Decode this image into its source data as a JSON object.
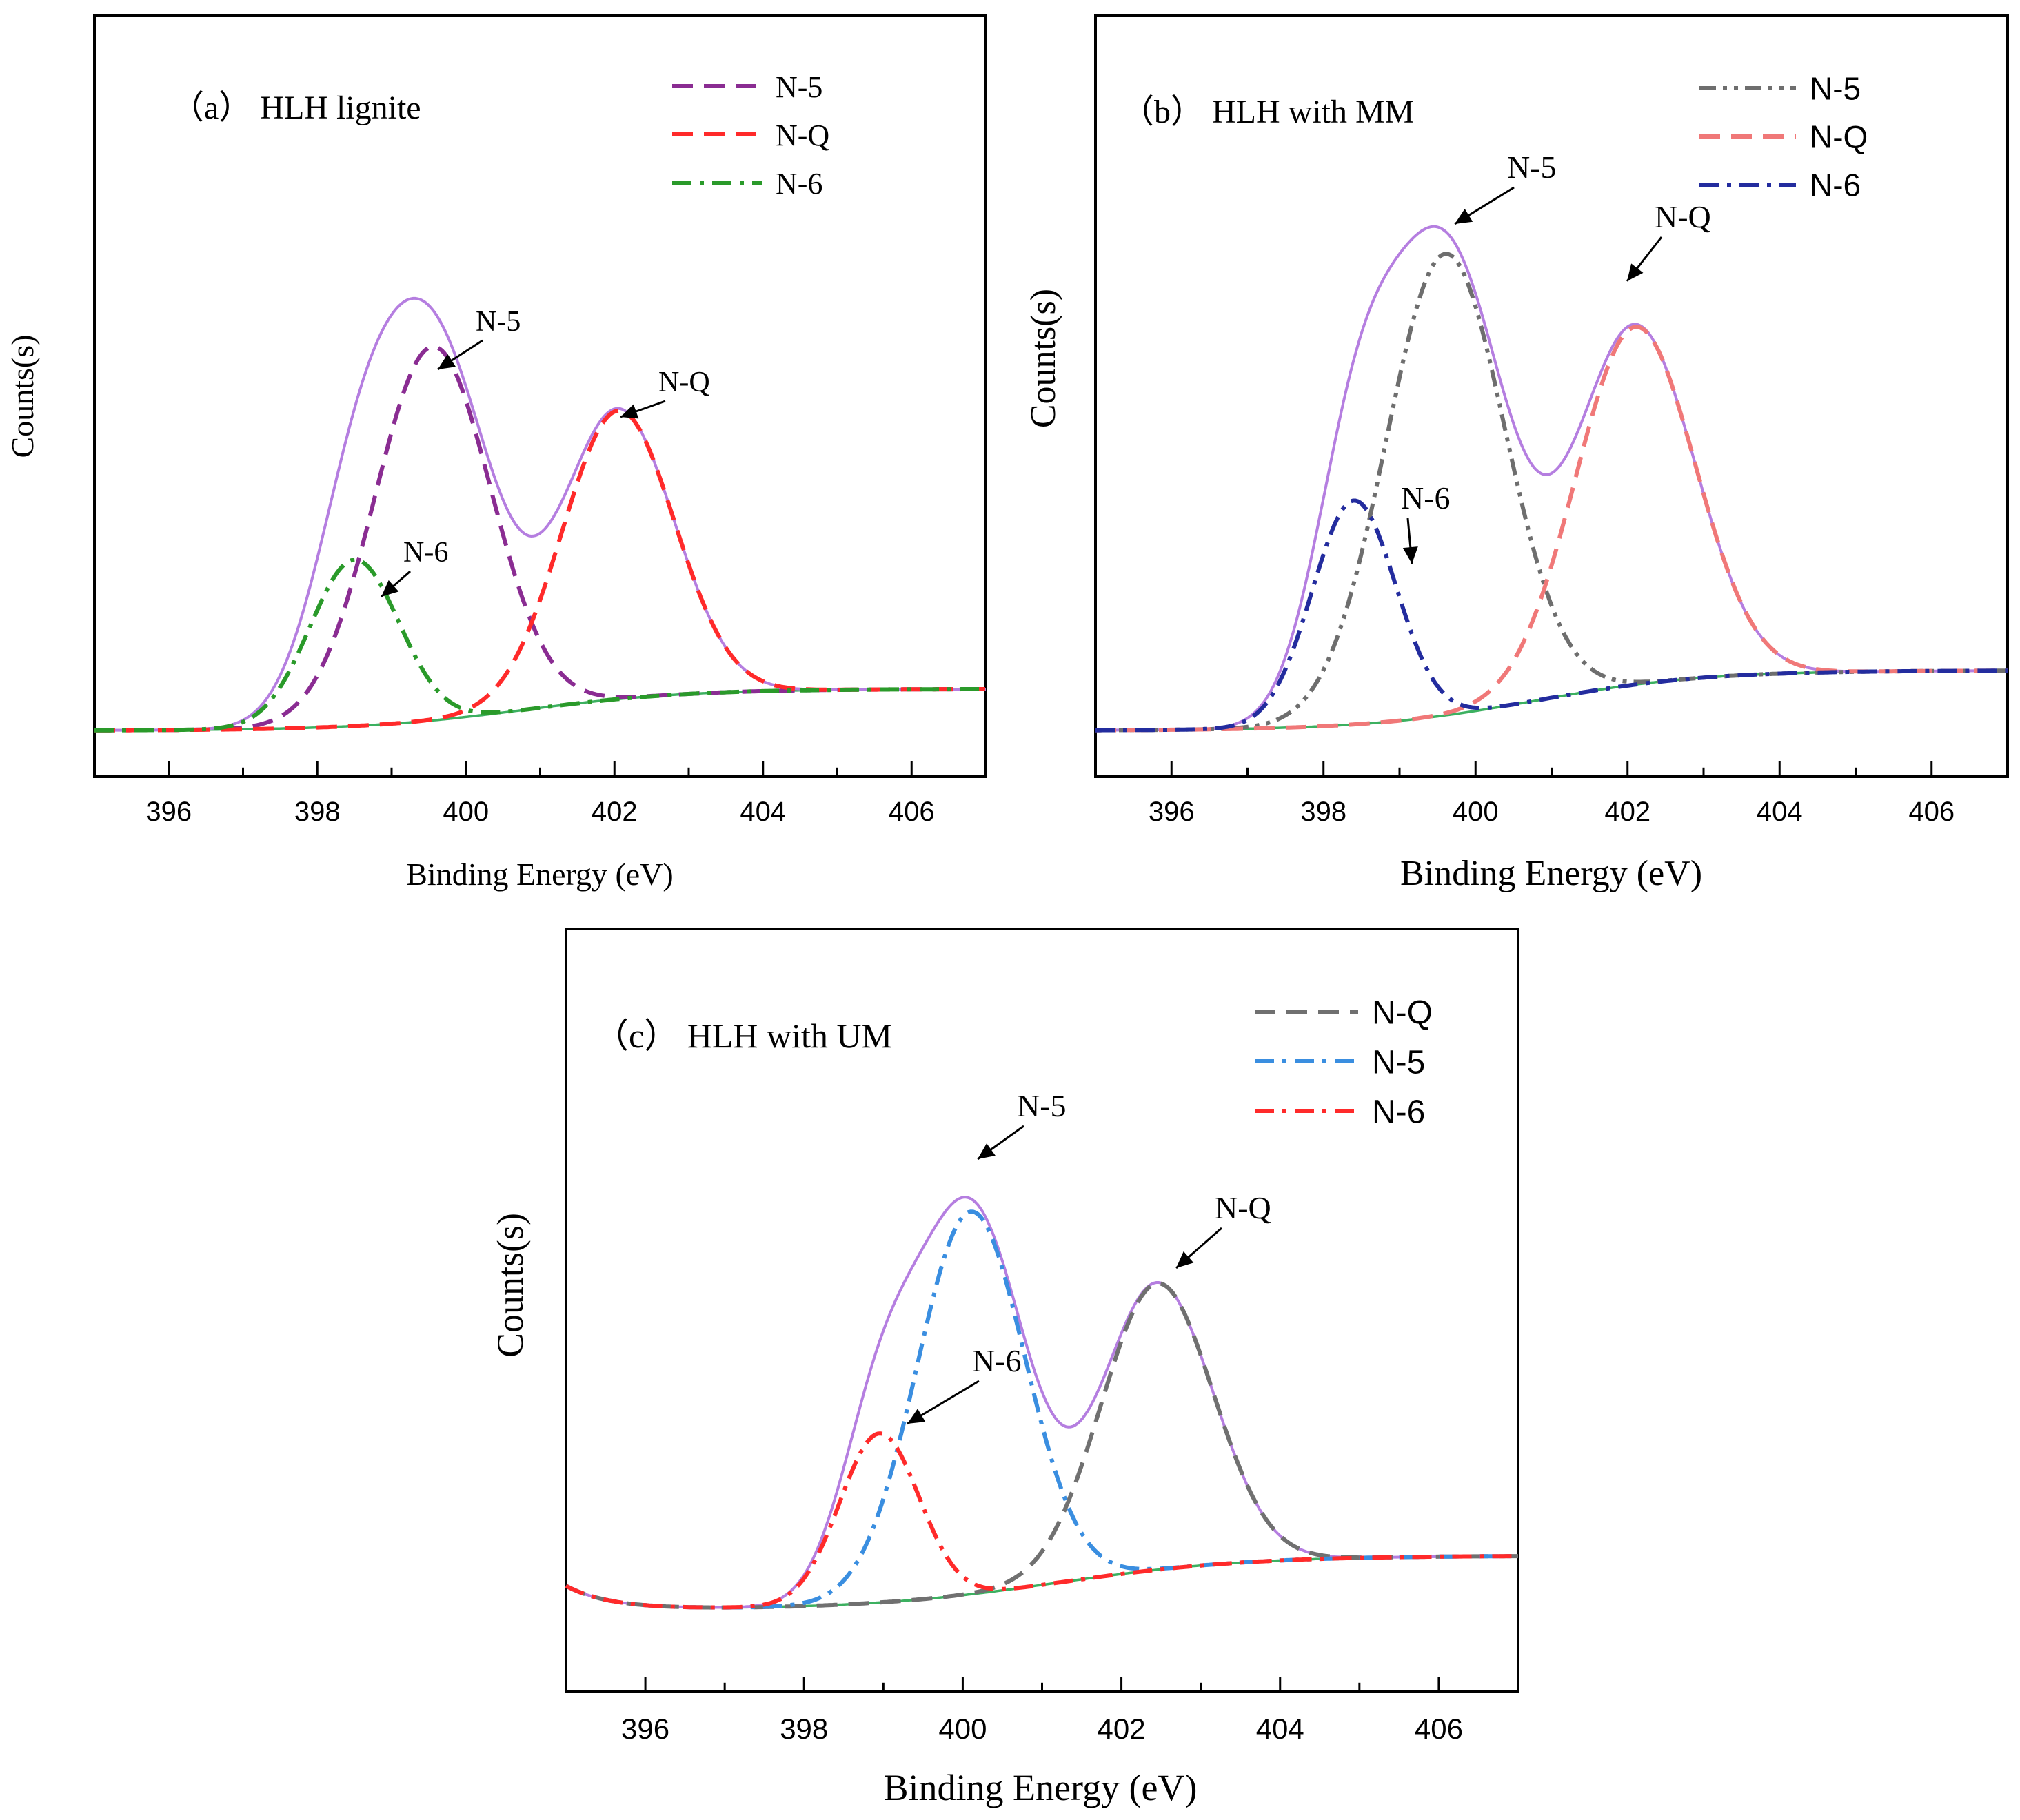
{
  "chart_data": [
    {
      "id": "a",
      "type": "line",
      "title": "（a）  HLH lignite",
      "xlabel": "Binding Energy (eV)",
      "ylabel": "Counts(s)",
      "xlim": [
        395,
        407
      ],
      "ylim": [
        -0.2,
        3.1
      ],
      "xticks": [
        396,
        398,
        400,
        402,
        404,
        406
      ],
      "legend_position": "top-right",
      "background": {
        "start": 0.0,
        "end": 0.18,
        "center": 400.8,
        "width": 1.1
      },
      "series": [
        {
          "name": "N-5",
          "role": "component",
          "color": "#8a2c92",
          "dash": "dashed",
          "center": 399.55,
          "sigma": 0.78,
          "amplitude": 1.62
        },
        {
          "name": "N-Q",
          "role": "component",
          "color": "#ff2a2a",
          "dash": "dashed",
          "center": 402.05,
          "sigma": 0.75,
          "amplitude": 1.25
        },
        {
          "name": "N-6",
          "role": "component",
          "color": "#2a9a2a",
          "dash": "dashdot",
          "center": 398.5,
          "sigma": 0.6,
          "amplitude": 0.72
        },
        {
          "name": "Envelope",
          "role": "envelope",
          "color": "#b57ee0",
          "dash": "solid"
        },
        {
          "name": "Background",
          "role": "background",
          "color": "#3cb060",
          "dash": "solid"
        }
      ],
      "annotations": [
        {
          "text": "N-5",
          "x": 399.55
        },
        {
          "text": "N-Q",
          "x": 402.05
        },
        {
          "text": "N-6",
          "x": 398.6
        }
      ]
    },
    {
      "id": "b",
      "type": "line",
      "title": "（b）  HLH with MM",
      "xlabel": "Binding Energy (eV)",
      "ylabel": "Counts(s)",
      "xlim": [
        395,
        407
      ],
      "ylim": [
        -0.2,
        3.1
      ],
      "xticks": [
        396,
        398,
        400,
        402,
        404,
        406
      ],
      "legend_position": "top-right",
      "background": {
        "start": 0.0,
        "end": 0.26,
        "center": 400.8,
        "width": 1.1
      },
      "series": [
        {
          "name": "N-5",
          "role": "component",
          "color": "#6e6e6e",
          "dash": "dashdotdot",
          "center": 399.6,
          "sigma": 0.78,
          "amplitude": 2.0
        },
        {
          "name": "N-Q",
          "role": "component",
          "color": "#f07878",
          "dash": "dashed",
          "center": 402.1,
          "sigma": 0.78,
          "amplitude": 1.55
        },
        {
          "name": "N-6",
          "role": "component",
          "color": "#232c9e",
          "dash": "dashdot",
          "center": 398.4,
          "sigma": 0.55,
          "amplitude": 0.97
        },
        {
          "name": "Envelope",
          "role": "envelope",
          "color": "#b57ee0",
          "dash": "solid"
        },
        {
          "name": "Background",
          "role": "background",
          "color": "#3cb060",
          "dash": "solid"
        }
      ],
      "annotations": [
        {
          "text": "N-5",
          "x": 399.6
        },
        {
          "text": "N-Q",
          "x": 402.1
        },
        {
          "text": "N-6",
          "x": 398.5
        }
      ]
    },
    {
      "id": "c",
      "type": "line",
      "title": "（c）  HLH  with UM",
      "xlabel": "Binding Energy (eV)",
      "ylabel": "Counts(s)",
      "xlim": [
        395,
        407
      ],
      "ylim": [
        -0.4,
        2.85
      ],
      "xticks": [
        396,
        398,
        400,
        402,
        404,
        406
      ],
      "legend_position": "top-right",
      "background": {
        "start": -0.05,
        "end": 0.18,
        "center": 401.2,
        "width": 1.2
      },
      "edge_tail": {
        "x0": 395.0,
        "decay": 0.55,
        "amplitude": 0.1
      },
      "series": [
        {
          "name": "N-Q",
          "role": "component",
          "color": "#707070",
          "dash": "dashed",
          "center": 402.45,
          "sigma": 0.7,
          "amplitude": 1.22
        },
        {
          "name": "N-5",
          "role": "component",
          "color": "#3a8ee0",
          "dash": "dashdot",
          "center": 400.1,
          "sigma": 0.68,
          "amplitude": 1.63
        },
        {
          "name": "N-6",
          "role": "component",
          "color": "#ff2a2a",
          "dash": "dashdot",
          "center": 398.95,
          "sigma": 0.5,
          "amplitude": 0.72
        },
        {
          "name": "Envelope",
          "role": "envelope",
          "color": "#b57ee0",
          "dash": "solid"
        },
        {
          "name": "Background",
          "role": "background",
          "color": "#3cb060",
          "dash": "solid"
        }
      ],
      "annotations": [
        {
          "text": "N-5",
          "x": 400.1
        },
        {
          "text": "N-Q",
          "x": 402.45
        },
        {
          "text": "N-6",
          "x": 399.0
        }
      ]
    }
  ]
}
